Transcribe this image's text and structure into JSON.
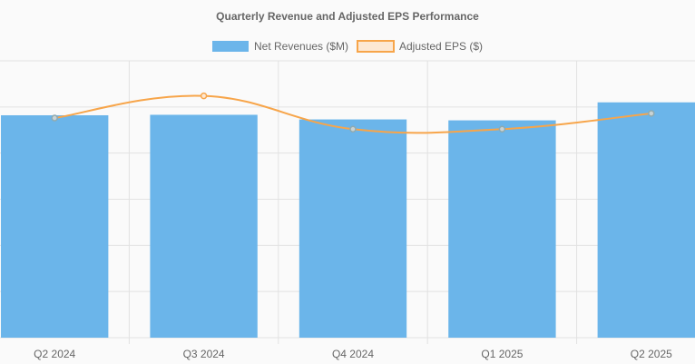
{
  "chart_data": {
    "type": "bar",
    "title": "Quarterly Revenue and Adjusted EPS Performance",
    "categories": [
      "Q2 2024",
      "Q3 2024",
      "Q4 2024",
      "Q1 2025",
      "Q2 2025"
    ],
    "series": [
      {
        "name": "Net Revenues ($M)",
        "type": "bar",
        "axis": "left",
        "values": [
          2410,
          2415,
          2365,
          2355,
          2550
        ]
      },
      {
        "name": "Adjusted EPS ($)",
        "type": "line",
        "axis": "right",
        "values": [
          0.476,
          0.524,
          0.452,
          0.452,
          0.486
        ]
      }
    ],
    "y_left": {
      "min": 0,
      "max": 3000
    },
    "y_right": {
      "min": 0,
      "max": 0.6
    },
    "grid": true,
    "legend_position": "top",
    "colors": {
      "bar_fill": "#6bb5ea",
      "line": "#f7a54a",
      "line_point": "#8faab0",
      "grid": "#e2e2e2",
      "text": "#666666"
    }
  }
}
